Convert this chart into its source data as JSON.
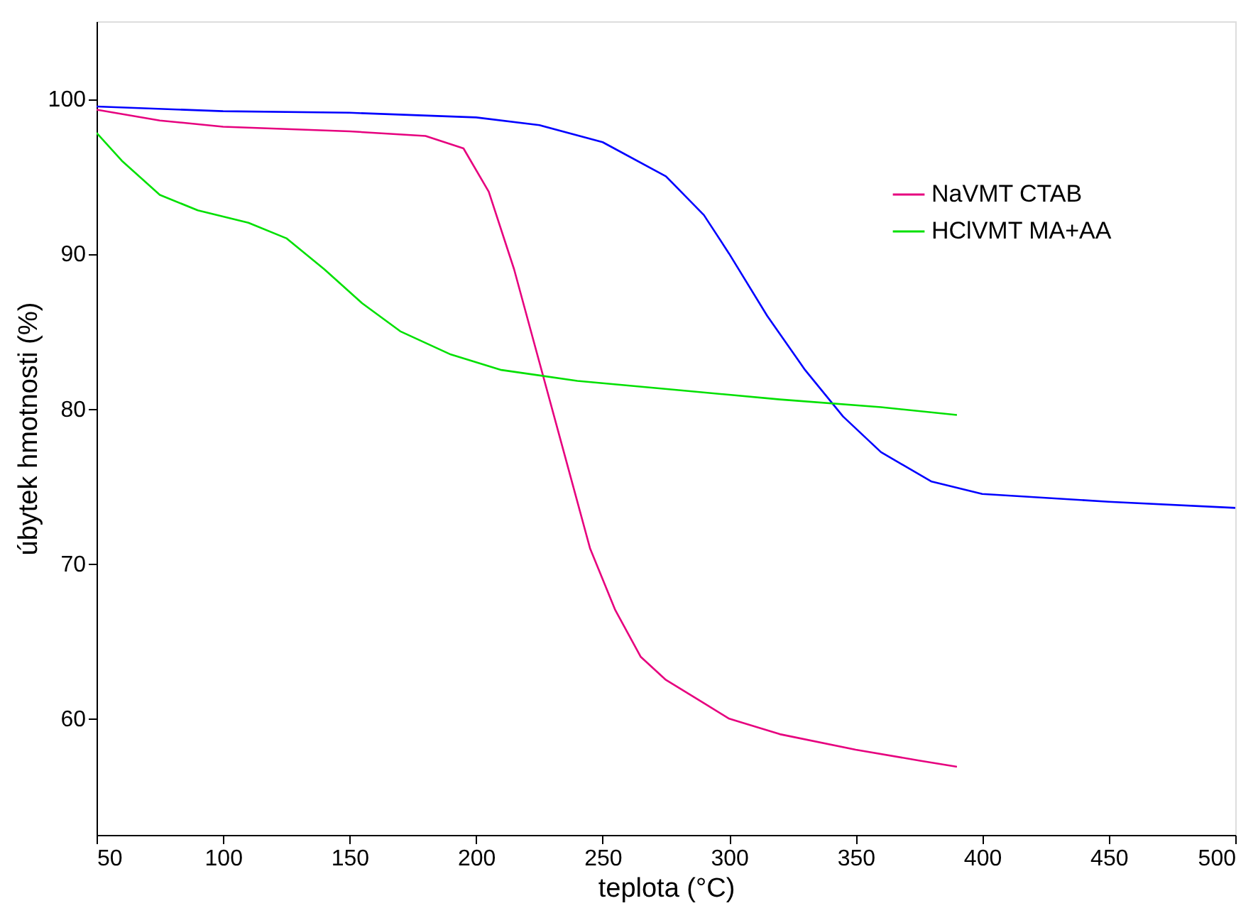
{
  "chart_data": {
    "type": "line",
    "xlabel": "teplota (°C)",
    "ylabel": "úbytek hmotnosti (%)",
    "xlim": [
      50,
      500
    ],
    "ylim": [
      52.5,
      105
    ],
    "xticks": [
      50,
      100,
      150,
      200,
      250,
      300,
      350,
      400,
      450,
      500
    ],
    "yticks": [
      60,
      70,
      80,
      90,
      100
    ],
    "grid": false,
    "legend": "top right",
    "line_style": "solid",
    "marker": "none",
    "series": [
      {
        "color": "#0000ff",
        "x": [
          50,
          100,
          150,
          200,
          225,
          250,
          275,
          290,
          300,
          315,
          330,
          345,
          360,
          380,
          400,
          450,
          500
        ],
        "values": [
          99.5,
          99.2,
          99.1,
          98.8,
          98.3,
          97.2,
          95,
          92.5,
          90,
          86,
          82.5,
          79.5,
          77.2,
          75.3,
          74.5,
          74,
          73.6
        ]
      },
      {
        "name": "NaVMT CTAB",
        "color": "#e6007e",
        "x": [
          50,
          75,
          100,
          150,
          180,
          195,
          205,
          215,
          225,
          235,
          245,
          255,
          265,
          275,
          290,
          300,
          320,
          350,
          375,
          390
        ],
        "values": [
          99.3,
          98.6,
          98.2,
          97.9,
          97.6,
          96.8,
          94,
          89,
          83,
          77,
          71,
          67,
          64,
          62.5,
          61,
          60,
          59,
          58,
          57.3,
          56.9
        ]
      },
      {
        "name": "HClVMT MA+AA",
        "color": "#00e000",
        "x": [
          50,
          60,
          75,
          90,
          110,
          125,
          140,
          155,
          170,
          190,
          210,
          240,
          280,
          320,
          360,
          390
        ],
        "values": [
          97.8,
          96,
          93.8,
          92.8,
          92,
          91,
          89,
          86.8,
          85,
          83.5,
          82.5,
          81.8,
          81.2,
          80.6,
          80.1,
          79.6
        ]
      }
    ]
  }
}
